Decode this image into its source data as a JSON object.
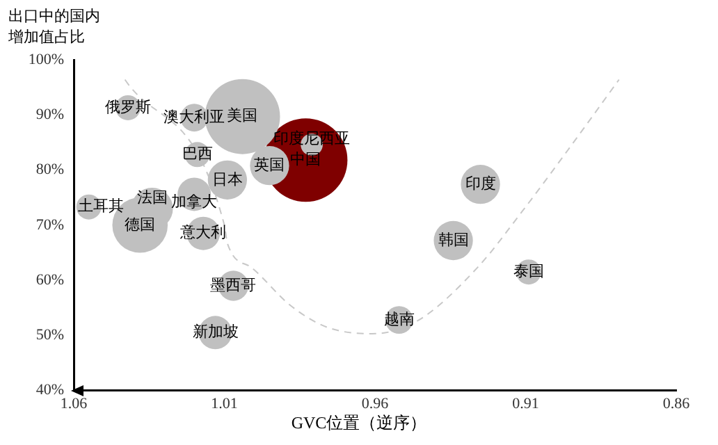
{
  "chart_data": {
    "type": "bubble",
    "ylabel": "出口中的国内增加值占比",
    "xlabel": "GVC位置（逆序）",
    "xlim": [
      1.06,
      0.86
    ],
    "xticks": [
      1.06,
      1.01,
      0.96,
      0.91,
      0.86
    ],
    "ylim": [
      40,
      100
    ],
    "yticks": [
      {
        "value": 40,
        "label": "40%"
      },
      {
        "value": 50,
        "label": "50%"
      },
      {
        "value": 60,
        "label": "60%"
      },
      {
        "value": 70,
        "label": "70%"
      },
      {
        "value": 80,
        "label": "80%"
      },
      {
        "value": 90,
        "label": "90%"
      },
      {
        "value": 100,
        "label": "100%"
      }
    ],
    "grid": false,
    "legend": false,
    "series": [
      {
        "type": "line",
        "color": "#c8c8c8",
        "line_style": "dashed",
        "marker": "none",
        "x": [
          1.043,
          1.01,
          1.009,
          1.001,
          0.988,
          0.976,
          0.961,
          0.946,
          0.926,
          0.911,
          0.896,
          0.879
        ],
        "values": [
          96.4,
          70,
          66.7,
          62.3,
          55.4,
          51.5,
          50.3,
          52.6,
          62.3,
          72.6,
          83.6,
          96.4
        ]
      },
      {
        "name": "中国",
        "color": "#7f0000",
        "x": [
          0.983
        ],
        "values": [
          81.8
        ],
        "sizes": [
          1
        ]
      },
      {
        "name": "美国",
        "color": "#c0c0c0",
        "x": [
          1.004
        ],
        "values": [
          89.7
        ],
        "sizes": [
          0.81
        ]
      },
      {
        "name": "德国",
        "color": "#c0c0c0",
        "x": [
          1.038
        ],
        "values": [
          70
        ],
        "sizes": [
          0.44
        ]
      },
      {
        "name": "法国",
        "color": "#c0c0c0",
        "x": [
          1.034
        ],
        "values": [
          73
        ],
        "sizes": [
          0.25
        ]
      },
      {
        "name": "英国",
        "color": "#c0c0c0",
        "x": [
          0.995
        ],
        "values": [
          80.8
        ],
        "sizes": [
          0.22
        ]
      },
      {
        "name": "日本",
        "color": "#c0c0c0",
        "x": [
          1.009
        ],
        "values": [
          78.2
        ],
        "sizes": [
          0.22
        ]
      },
      {
        "name": "印度",
        "color": "#c0c0c0",
        "x": [
          0.925
        ],
        "values": [
          77.4
        ],
        "sizes": [
          0.22
        ]
      },
      {
        "name": "韩国",
        "color": "#c0c0c0",
        "x": [
          0.934
        ],
        "values": [
          67.2
        ],
        "sizes": [
          0.22
        ]
      },
      {
        "name": "加拿大",
        "color": "#c0c0c0",
        "x": [
          1.02
        ],
        "values": [
          75.6
        ],
        "sizes": [
          0.16
        ]
      },
      {
        "name": "意大利",
        "color": "#c0c0c0",
        "x": [
          1.017
        ],
        "values": [
          68.5
        ],
        "sizes": [
          0.16
        ]
      },
      {
        "name": "新加坡",
        "color": "#c0c0c0",
        "x": [
          1.013
        ],
        "values": [
          50.5
        ],
        "sizes": [
          0.16
        ]
      },
      {
        "name": "墨西哥",
        "color": "#c0c0c0",
        "x": [
          1.007
        ],
        "values": [
          59
        ],
        "sizes": [
          0.13
        ]
      },
      {
        "name": "澳大利亚",
        "color": "#c0c0c0",
        "x": [
          1.02
        ],
        "values": [
          89.5
        ],
        "sizes": [
          0.11
        ]
      },
      {
        "name": "越南",
        "color": "#c0c0c0",
        "x": [
          0.952
        ],
        "values": [
          52.8
        ],
        "sizes": [
          0.11
        ]
      },
      {
        "name": "俄罗斯",
        "color": "#c0c0c0",
        "x": [
          1.042
        ],
        "values": [
          91.3
        ],
        "sizes": [
          0.09
        ]
      },
      {
        "name": "巴西",
        "color": "#c0c0c0",
        "x": [
          1.019
        ],
        "values": [
          82.8
        ],
        "sizes": [
          0.09
        ]
      },
      {
        "name": "土耳其",
        "color": "#c0c0c0",
        "x": [
          1.055
        ],
        "values": [
          73.3
        ],
        "sizes": [
          0.09
        ]
      },
      {
        "name": "泰国",
        "color": "#c0c0c0",
        "x": [
          0.909
        ],
        "values": [
          61.5
        ],
        "sizes": [
          0.09
        ]
      },
      {
        "name": "印度尼西亚",
        "color": "#c0c0c0",
        "x": [
          0.981
        ],
        "values": [
          84.6
        ],
        "sizes": [
          0.07
        ]
      }
    ]
  }
}
